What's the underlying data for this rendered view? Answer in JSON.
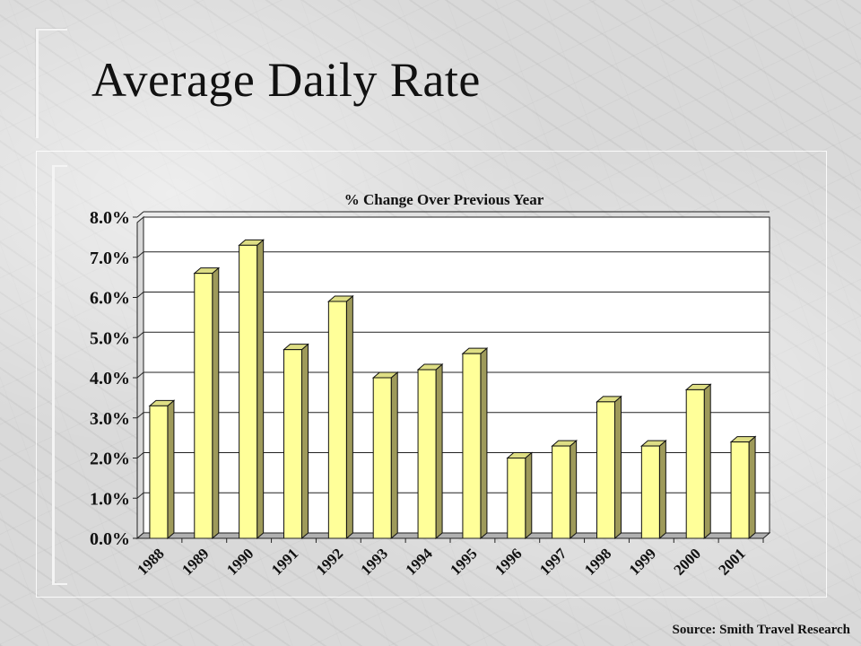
{
  "title": "Average Daily Rate",
  "source": "Source: Smith Travel Research",
  "chart_data": {
    "type": "bar",
    "title": "% Change Over Previous Year",
    "xlabel": "",
    "ylabel": "",
    "categories": [
      "1988",
      "1989",
      "1990",
      "1991",
      "1992",
      "1993",
      "1994",
      "1995",
      "1996",
      "1997",
      "1998",
      "1999",
      "2000",
      "2001"
    ],
    "values": [
      3.3,
      6.6,
      7.3,
      4.7,
      5.9,
      4.0,
      4.2,
      4.6,
      2.0,
      2.3,
      3.4,
      2.3,
      3.7,
      2.4
    ],
    "ylim": [
      0,
      8
    ],
    "yticks": [
      "0.0%",
      "1.0%",
      "2.0%",
      "3.0%",
      "4.0%",
      "5.0%",
      "6.0%",
      "7.0%",
      "8.0%"
    ],
    "grid": true,
    "bar_color": "#ffff99",
    "bar_side_color": "#9e9a5a",
    "bar_top_color": "#dede84",
    "legend": "none"
  }
}
